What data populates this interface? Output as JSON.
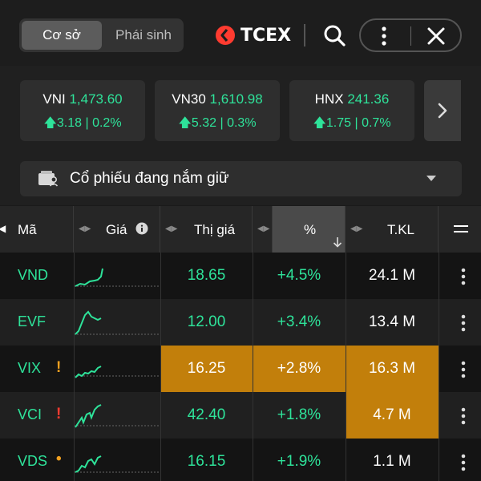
{
  "header": {
    "tabs": [
      {
        "label": "Cơ sở",
        "active": true
      },
      {
        "label": "Phái sinh",
        "active": false
      }
    ],
    "logo_text": "TCEX",
    "accent": "#ff3b30"
  },
  "indices": [
    {
      "name": "VNI",
      "value": "1,473.60",
      "change": "3.18 | 0.2%"
    },
    {
      "name": "VN30",
      "value": "1,610.98",
      "change": "5.32 | 0.3%"
    },
    {
      "name": "HNX",
      "value": "241.36",
      "change": "1.75 | 0.7%"
    }
  ],
  "watchlist": {
    "label": "Cổ phiếu đang nắm giữ"
  },
  "table": {
    "columns": [
      {
        "label": "Mã"
      },
      {
        "label": "Giá"
      },
      {
        "label": "Thị giá"
      },
      {
        "label": "%"
      },
      {
        "label": "T.KL"
      }
    ],
    "rows": [
      {
        "symbol": "VND",
        "price": "18.65",
        "pct": "+4.5%",
        "volume": "24.1 M",
        "flag": "",
        "highlight_price": false,
        "highlight_pct": false,
        "highlight_vol": false
      },
      {
        "symbol": "EVF",
        "price": "12.00",
        "pct": "+3.4%",
        "volume": "13.4 M",
        "flag": "",
        "highlight_price": false,
        "highlight_pct": false,
        "highlight_vol": false
      },
      {
        "symbol": "VIX",
        "price": "16.25",
        "pct": "+2.8%",
        "volume": "16.3 M",
        "flag": "!",
        "flag_color": "#f0a020",
        "highlight_price": true,
        "highlight_pct": true,
        "highlight_vol": true
      },
      {
        "symbol": "VCI",
        "price": "42.40",
        "pct": "+1.8%",
        "volume": "4.7 M",
        "flag": "!",
        "flag_color": "#ff3b30",
        "highlight_price": false,
        "highlight_pct": false,
        "highlight_vol": true
      },
      {
        "symbol": "VDS",
        "price": "16.15",
        "pct": "+1.9%",
        "volume": "1.1 M",
        "flag": "•",
        "flag_color": "#f0a020",
        "highlight_price": false,
        "highlight_pct": false,
        "highlight_vol": false
      }
    ]
  },
  "colors": {
    "up": "#2ee39a",
    "highlight": "#c27f0b",
    "background": "#141414"
  }
}
